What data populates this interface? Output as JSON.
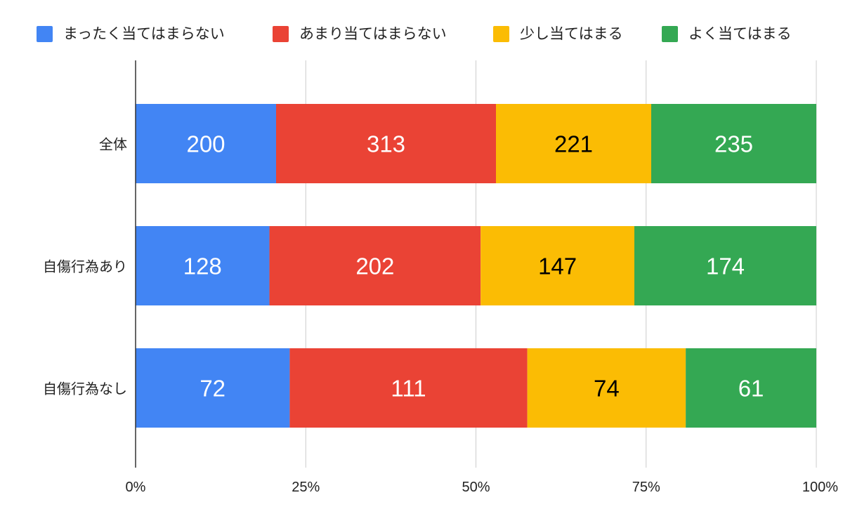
{
  "chart_data": {
    "type": "bar",
    "orientation": "horizontal",
    "stacked": "percent",
    "categories": [
      "全体",
      "自傷行為あり",
      "自傷行為なし"
    ],
    "series": [
      {
        "name": "まったく当てはまらない",
        "color": "#4285f4",
        "label_color": "#ffffff",
        "values": [
          200,
          128,
          72
        ]
      },
      {
        "name": "あまり当てはまらない",
        "color": "#ea4335",
        "label_color": "#ffffff",
        "values": [
          313,
          202,
          111
        ]
      },
      {
        "name": "少し当てはまる",
        "color": "#fbbc04",
        "label_color": "#000000",
        "values": [
          221,
          147,
          74
        ]
      },
      {
        "name": "よく当てはまる",
        "color": "#34a853",
        "label_color": "#ffffff",
        "values": [
          235,
          174,
          61
        ]
      }
    ],
    "x_ticks": [
      "0%",
      "25%",
      "50%",
      "75%",
      "100%"
    ],
    "xlim": [
      0,
      100
    ],
    "grid": true,
    "legend_position": "top"
  }
}
